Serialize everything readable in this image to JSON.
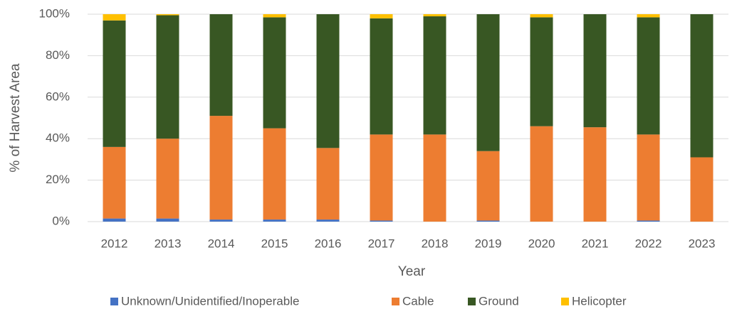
{
  "chart_data": {
    "type": "stacked_bar",
    "x_label": "Year",
    "y_label": "% of Harvest Area",
    "categories": [
      "2012",
      "2013",
      "2014",
      "2015",
      "2016",
      "2017",
      "2018",
      "2019",
      "2020",
      "2021",
      "2022",
      "2023"
    ],
    "series": [
      {
        "name": "Unknown/Unidentified/Inoperable",
        "color": "#4472c4",
        "values": [
          1.5,
          1.5,
          1,
          1,
          1,
          0.5,
          0,
          0.5,
          0,
          0,
          0.5,
          0
        ]
      },
      {
        "name": "Cable",
        "color": "#ed7d31",
        "values": [
          34.5,
          38.5,
          50,
          44,
          34.5,
          41.5,
          42,
          33.5,
          46,
          45.5,
          41.5,
          31
        ]
      },
      {
        "name": "Ground",
        "color": "#385723",
        "values": [
          61,
          59.5,
          49,
          53.5,
          64.5,
          56,
          57,
          66,
          52.5,
          54.5,
          56.5,
          69
        ]
      },
      {
        "name": "Helicopter",
        "color": "#ffc000",
        "values": [
          3,
          0.5,
          0,
          1.5,
          0,
          2,
          1,
          0,
          1.5,
          0,
          1.5,
          0
        ]
      }
    ],
    "ylim": [
      0,
      100
    ],
    "yticks": [
      {
        "value": 0,
        "label": "0%"
      },
      {
        "value": 20,
        "label": "20%"
      },
      {
        "value": 40,
        "label": "40%"
      },
      {
        "value": 60,
        "label": "60%"
      },
      {
        "value": 80,
        "label": "80%"
      },
      {
        "value": 100,
        "label": "100%"
      }
    ],
    "grid": true,
    "legend": "bottom"
  }
}
